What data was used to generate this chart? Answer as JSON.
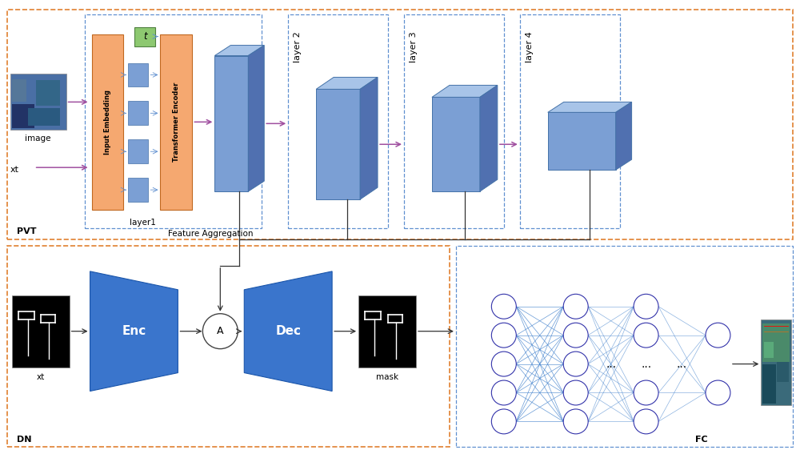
{
  "fig_width": 10.0,
  "fig_height": 5.67,
  "bg_color": "#ffffff",
  "orange_color": "#F5A870",
  "blue_3d_face": "#7B9FD4",
  "blue_3d_dark": "#5070B0",
  "blue_3d_top": "#A8C4E8",
  "blue_deep": "#3A75CC",
  "green_box": "#8DC870",
  "arrow_purple": "#A050A0",
  "arrow_dark": "#333333",
  "dashed_orange": "#E08030",
  "dashed_blue": "#6090D0",
  "node_border": "#3333AA",
  "node_connect": "#4080CC",
  "pvt_label": "PVT",
  "dn_label": "DN",
  "fc_label": "FC",
  "fa_label": "Feature Aggregation",
  "layer1_label": "layer1",
  "layer2_label": "layer 2",
  "layer3_label": "layer 3",
  "layer4_label": "layer 4",
  "ie_label": "Input Embedding",
  "te_label": "Transformer Encoder",
  "enc_label": "Enc",
  "dec_label": "Dec",
  "node_label": "A",
  "t_label": "t",
  "image_label": "image",
  "xt_top_label": "xt",
  "xt_bot_label": "xt",
  "mask_label": "mask",
  "dots": "..."
}
